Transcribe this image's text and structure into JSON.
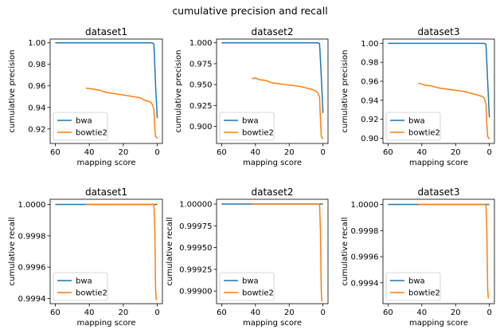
{
  "figure": {
    "title": "cumulative precision and recall"
  },
  "colors": {
    "bwa": "#1f77b4",
    "bowtie2": "#ff7f0e"
  },
  "chart_data": [
    {
      "type": "line",
      "title": "dataset1",
      "xlabel": "mapping score",
      "ylabel": "cumulative precision",
      "xlim": [
        63,
        -3
      ],
      "ylim": [
        0.9065,
        1.0035
      ],
      "xticks": [
        60,
        40,
        20,
        0
      ],
      "yticks": [
        0.92,
        0.94,
        0.96,
        0.98,
        1.0
      ],
      "ytick_labels": [
        "0.92",
        "0.94",
        "0.96",
        "0.98",
        "1.00"
      ],
      "legend": "lower-left",
      "series": [
        {
          "name": "bwa",
          "x": [
            60,
            50,
            40,
            30,
            20,
            10,
            3,
            2,
            1,
            0
          ],
          "y": [
            1.0,
            1.0,
            1.0,
            1.0,
            1.0,
            1.0,
            1.0,
            0.999,
            0.96,
            0.93
          ]
        },
        {
          "name": "bowtie2",
          "x": [
            42,
            38,
            34,
            30,
            26,
            22,
            18,
            14,
            10,
            8,
            6,
            4,
            3,
            2,
            1.5,
            1,
            0
          ],
          "y": [
            0.958,
            0.957,
            0.956,
            0.954,
            0.953,
            0.952,
            0.951,
            0.95,
            0.949,
            0.947,
            0.946,
            0.945,
            0.943,
            0.938,
            0.92,
            0.913,
            0.911
          ]
        }
      ]
    },
    {
      "type": "line",
      "title": "dataset2",
      "xlabel": "mapping score",
      "ylabel": "cumulative precision",
      "xlim": [
        63,
        -3
      ],
      "ylim": [
        0.8795,
        1.0045
      ],
      "xticks": [
        60,
        40,
        20,
        0
      ],
      "yticks": [
        0.9,
        0.925,
        0.95,
        0.975,
        1.0
      ],
      "ytick_labels": [
        "0.900",
        "0.925",
        "0.950",
        "0.975",
        "1.000"
      ],
      "legend": "lower-left",
      "series": [
        {
          "name": "bwa",
          "x": [
            60,
            50,
            40,
            30,
            20,
            10,
            3,
            2,
            1,
            0
          ],
          "y": [
            1.0,
            1.0,
            1.0,
            1.0,
            1.0,
            1.0,
            1.0,
            0.999,
            0.96,
            0.916
          ]
        },
        {
          "name": "bowtie2",
          "x": [
            42,
            40,
            38,
            34,
            30,
            26,
            22,
            18,
            14,
            10,
            8,
            6,
            4,
            3,
            2,
            1.5,
            1,
            0
          ],
          "y": [
            0.957,
            0.958,
            0.956,
            0.955,
            0.952,
            0.951,
            0.95,
            0.949,
            0.948,
            0.946,
            0.945,
            0.944,
            0.942,
            0.94,
            0.935,
            0.91,
            0.888,
            0.885
          ]
        }
      ]
    },
    {
      "type": "line",
      "title": "dataset3",
      "xlabel": "mapping score",
      "ylabel": "cumulative precision",
      "xlim": [
        63,
        -3
      ],
      "ylim": [
        0.8945,
        1.0045
      ],
      "xticks": [
        60,
        40,
        20,
        0
      ],
      "yticks": [
        0.9,
        0.92,
        0.94,
        0.96,
        0.98,
        1.0
      ],
      "ytick_labels": [
        "0.90",
        "0.92",
        "0.94",
        "0.96",
        "0.98",
        "1.00"
      ],
      "legend": "lower-left",
      "series": [
        {
          "name": "bwa",
          "x": [
            60,
            50,
            40,
            30,
            20,
            10,
            3,
            2,
            1,
            0
          ],
          "y": [
            1.0,
            1.0,
            1.0,
            1.0,
            1.0,
            1.0,
            1.0,
            0.999,
            0.96,
            0.922
          ]
        },
        {
          "name": "bowtie2",
          "x": [
            42,
            40,
            38,
            34,
            30,
            26,
            22,
            18,
            14,
            10,
            8,
            6,
            4,
            3,
            2,
            1.5,
            1,
            0
          ],
          "y": [
            0.958,
            0.957,
            0.956,
            0.955,
            0.953,
            0.952,
            0.951,
            0.95,
            0.949,
            0.947,
            0.946,
            0.945,
            0.944,
            0.942,
            0.936,
            0.915,
            0.902,
            0.899
          ]
        }
      ]
    },
    {
      "type": "line",
      "title": "dataset1",
      "xlabel": "mapping score",
      "ylabel": "cumulative recall",
      "xlim": [
        63,
        -3
      ],
      "ylim": [
        0.999367,
        1.000033
      ],
      "xticks": [
        60,
        40,
        20,
        0
      ],
      "yticks": [
        0.9994,
        0.9996,
        0.9998,
        1.0
      ],
      "ytick_labels": [
        "0.9994",
        "0.9996",
        "0.9998",
        "1.0000"
      ],
      "legend": "lower-left",
      "series": [
        {
          "name": "bwa",
          "x": [
            60,
            40,
            20,
            3,
            2,
            1,
            0
          ],
          "y": [
            1.0,
            1.0,
            1.0,
            1.0,
            1.0,
            1.0,
            1.0
          ]
        },
        {
          "name": "bowtie2",
          "x": [
            42,
            40,
            20,
            3,
            2,
            1.5,
            1,
            0.6
          ],
          "y": [
            1.0,
            1.0,
            1.0,
            1.0,
            1.0,
            0.99985,
            0.99945,
            0.99939
          ]
        }
      ]
    },
    {
      "type": "line",
      "title": "dataset2",
      "xlabel": "mapping score",
      "ylabel": "cumulative recall",
      "xlim": [
        63,
        -3
      ],
      "ylim": [
        0.998855,
        1.000055
      ],
      "xticks": [
        60,
        40,
        20,
        0
      ],
      "yticks": [
        0.999,
        0.99925,
        0.9995,
        0.99975,
        1.0
      ],
      "ytick_labels": [
        "0.99900",
        "0.99925",
        "0.99950",
        "0.99975",
        "1.00000"
      ],
      "legend": "lower-left",
      "series": [
        {
          "name": "bwa",
          "x": [
            60,
            40,
            20,
            3,
            2,
            1,
            0
          ],
          "y": [
            1.0,
            1.0,
            1.0,
            1.0,
            1.0,
            1.0,
            1.0
          ]
        },
        {
          "name": "bowtie2",
          "x": [
            42,
            40,
            20,
            3,
            2,
            1.5,
            1,
            0.6
          ],
          "y": [
            1.0,
            1.0,
            1.0,
            1.0,
            1.0,
            0.9997,
            0.999,
            0.99888
          ]
        }
      ]
    },
    {
      "type": "line",
      "title": "dataset3",
      "xlabel": "mapping score",
      "ylabel": "cumulative recall",
      "xlim": [
        63,
        -3
      ],
      "ylim": [
        0.99924,
        1.00004
      ],
      "xticks": [
        60,
        40,
        20,
        0
      ],
      "yticks": [
        0.9994,
        0.9996,
        0.9998,
        1.0
      ],
      "ytick_labels": [
        "0.9994",
        "0.9996",
        "0.9998",
        "1.0000"
      ],
      "legend": "lower-left",
      "series": [
        {
          "name": "bwa",
          "x": [
            60,
            40,
            20,
            3,
            2,
            1,
            0
          ],
          "y": [
            1.0,
            1.0,
            1.0,
            1.0,
            1.0,
            1.0,
            1.0
          ]
        },
        {
          "name": "bowtie2",
          "x": [
            42,
            40,
            20,
            3,
            2,
            1.5,
            1,
            0.6
          ],
          "y": [
            1.0,
            1.0,
            1.0,
            1.0,
            1.0,
            0.9998,
            0.99935,
            0.99928
          ]
        }
      ]
    }
  ]
}
